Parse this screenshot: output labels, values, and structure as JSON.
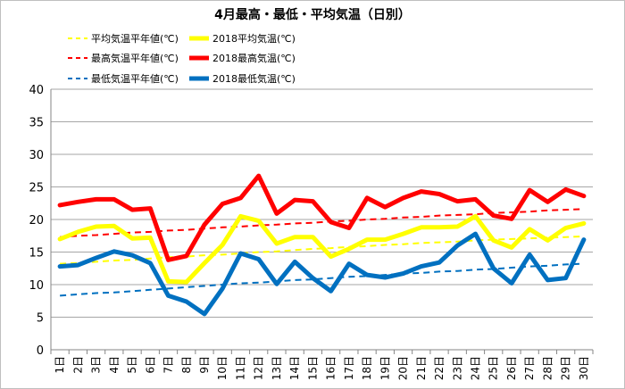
{
  "chart_data": {
    "type": "line",
    "title": "4月最高・最低・平均気温（日別）",
    "xlabel": "",
    "ylabel": "",
    "ylim": [
      0,
      40
    ],
    "yticks": [
      0,
      5,
      10,
      15,
      20,
      25,
      30,
      35,
      40
    ],
    "grid": true,
    "legend_position": "top",
    "categories": [
      "1日",
      "2日",
      "3日",
      "4日",
      "5日",
      "6日",
      "7日",
      "8日",
      "9日",
      "10日",
      "11日",
      "12日",
      "13日",
      "14日",
      "15日",
      "16日",
      "17日",
      "18日",
      "19日",
      "20日",
      "21日",
      "22日",
      "23日",
      "24日",
      "25日",
      "26日",
      "27日",
      "28日",
      "29日",
      "30日"
    ],
    "series": [
      {
        "name": "平均気温平年値(℃)",
        "color": "#ffff00",
        "style": "dashed",
        "values": [
          13.2,
          13.3,
          13.5,
          13.7,
          13.8,
          14.0,
          14.2,
          14.3,
          14.5,
          14.6,
          14.8,
          15.0,
          15.1,
          15.3,
          15.5,
          15.6,
          15.8,
          15.9,
          16.1,
          16.2,
          16.4,
          16.5,
          16.6,
          16.8,
          16.9,
          17.0,
          17.1,
          17.2,
          17.3,
          17.4
        ]
      },
      {
        "name": "2018平均気温(℃)",
        "color": "#ffff00",
        "style": "solid",
        "values": [
          17.0,
          18.1,
          18.9,
          19.0,
          17.1,
          17.2,
          10.5,
          10.4,
          13.3,
          16.1,
          20.5,
          19.8,
          16.3,
          17.3,
          17.3,
          14.3,
          15.5,
          16.9,
          16.9,
          17.8,
          18.8,
          18.8,
          18.9,
          20.5,
          16.8,
          15.7,
          18.5,
          16.8,
          18.7,
          19.4
        ]
      },
      {
        "name": "最高気温平年値(℃)",
        "color": "#ff0000",
        "style": "dashed",
        "values": [
          17.3,
          17.5,
          17.6,
          17.8,
          18.0,
          18.1,
          18.3,
          18.4,
          18.6,
          18.8,
          18.9,
          19.1,
          19.2,
          19.4,
          19.5,
          19.7,
          19.8,
          20.0,
          20.1,
          20.3,
          20.4,
          20.6,
          20.7,
          20.8,
          21.0,
          21.1,
          21.2,
          21.4,
          21.5,
          21.6
        ]
      },
      {
        "name": "2018最高気温(℃)",
        "color": "#ff0000",
        "style": "solid",
        "values": [
          22.2,
          22.7,
          23.1,
          23.1,
          21.5,
          21.7,
          13.8,
          14.4,
          19.2,
          22.4,
          23.3,
          26.7,
          20.9,
          23.0,
          22.8,
          19.6,
          18.7,
          23.3,
          21.9,
          23.3,
          24.3,
          23.9,
          22.8,
          23.1,
          20.6,
          20.1,
          24.5,
          22.7,
          24.6,
          23.6
        ]
      },
      {
        "name": "最低気温平年値(℃)",
        "color": "#0070c0",
        "style": "dashed",
        "values": [
          8.3,
          8.5,
          8.7,
          8.8,
          9.0,
          9.2,
          9.4,
          9.6,
          9.8,
          10.0,
          10.2,
          10.3,
          10.5,
          10.7,
          10.8,
          11.0,
          11.2,
          11.3,
          11.5,
          11.7,
          11.8,
          12.0,
          12.1,
          12.3,
          12.4,
          12.6,
          12.8,
          12.9,
          13.1,
          13.2
        ]
      },
      {
        "name": "2018最低気温(℃)",
        "color": "#0070c0",
        "style": "solid",
        "values": [
          12.8,
          13.0,
          14.1,
          15.1,
          14.5,
          13.3,
          8.3,
          7.4,
          5.5,
          9.4,
          14.8,
          13.9,
          10.1,
          13.5,
          11.0,
          9.0,
          13.2,
          11.5,
          11.1,
          11.7,
          12.8,
          13.4,
          16.0,
          17.8,
          12.5,
          10.2,
          14.6,
          10.7,
          11.0,
          16.9
        ]
      }
    ]
  }
}
